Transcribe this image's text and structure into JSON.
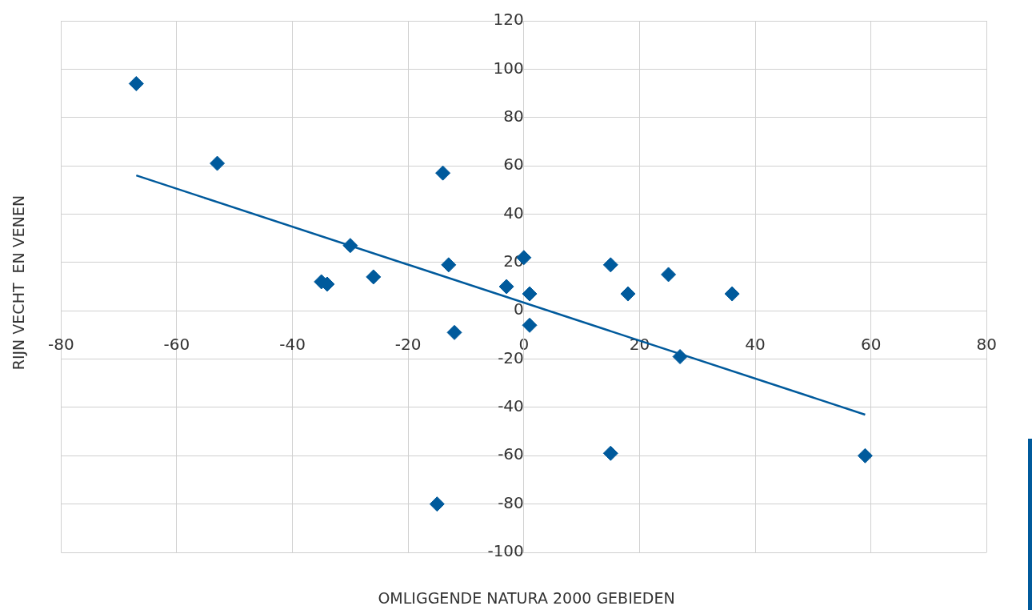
{
  "chart_data": {
    "type": "scatter",
    "xlabel": "OMLIGGENDE NATURA 2000 GEBIEDEN",
    "ylabel": "RIJN VECHT  EN VENEN",
    "xlim": [
      -80,
      80
    ],
    "xticks": [
      -80,
      -60,
      -40,
      -20,
      0,
      20,
      40,
      60,
      80
    ],
    "ylim": [
      -100,
      120
    ],
    "yticks": [
      -100,
      -80,
      -60,
      -40,
      -20,
      0,
      20,
      40,
      60,
      80,
      100,
      120
    ],
    "grid": true,
    "legend": false,
    "marker": "diamond",
    "series": [
      {
        "color": "#005a9c",
        "x": [
          -67,
          -53,
          -14,
          -30,
          -35,
          -34,
          -26,
          -13,
          -12,
          0,
          -3,
          1,
          1,
          15,
          18,
          25,
          36,
          27,
          15,
          59,
          -15
        ],
        "values": [
          94,
          61,
          57,
          27,
          12,
          11,
          14,
          19,
          -9,
          22,
          10,
          7,
          -6,
          19,
          7,
          15,
          7,
          -19,
          -59,
          -60,
          -80
        ]
      },
      {
        "type": "line",
        "color": "#005a9c",
        "line_style": "solid",
        "marker": "none",
        "x": [
          -67,
          59
        ],
        "values": [
          56,
          -43
        ]
      }
    ]
  }
}
